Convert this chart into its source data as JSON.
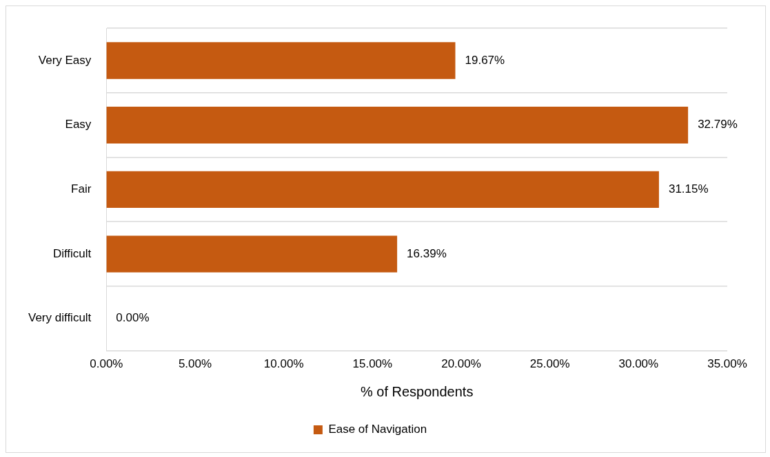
{
  "chart_data": {
    "type": "bar",
    "orientation": "horizontal",
    "xlabel": "% of Respondents",
    "categories": [
      "Very Easy",
      "Easy",
      "Fair",
      "Difficult",
      "Very difficult"
    ],
    "series": [
      {
        "name": "Ease of Navigation",
        "color": "#c55a11",
        "values": [
          19.67,
          32.79,
          31.15,
          16.39,
          0
        ],
        "value_labels": [
          "19.67%",
          "32.79%",
          "31.15%",
          "16.39%",
          "0.00%"
        ]
      }
    ],
    "xlim": [
      0,
      35
    ],
    "xticks": [
      {
        "value": 0,
        "label": "0.00%"
      },
      {
        "value": 5,
        "label": "5.00%"
      },
      {
        "value": 10,
        "label": "10.00%"
      },
      {
        "value": 15,
        "label": "15.00%"
      },
      {
        "value": 20,
        "label": "20.00%"
      },
      {
        "value": 25,
        "label": "25.00%"
      },
      {
        "value": 30,
        "label": "30.00%"
      },
      {
        "value": 35,
        "label": "35.00%"
      }
    ],
    "grid": "y",
    "legend": "bottom"
  }
}
